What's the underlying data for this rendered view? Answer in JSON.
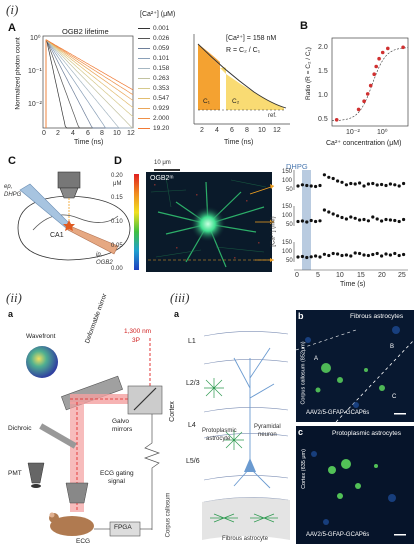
{
  "section_i": "(i)",
  "section_ii": "(ii)",
  "section_iii": "(iii)",
  "panelA": {
    "letter": "A",
    "title": "OGB2 lifetime",
    "ylabel": "Normalized photon count",
    "xlabel": "Time (ns)",
    "yticks": [
      "10⁰",
      "10⁻¹",
      "10⁻²"
    ],
    "xticks": [
      "0",
      "2",
      "4",
      "6",
      "8",
      "10",
      "12"
    ],
    "legend_title": "[Ca²⁺] (μM)",
    "legend": [
      {
        "label": "0.001",
        "color": "#333333"
      },
      {
        "label": "0.026",
        "color": "#555555"
      },
      {
        "label": "0.059",
        "color": "#6e7f9a"
      },
      {
        "label": "0.101",
        "color": "#8aa0b8"
      },
      {
        "label": "0.158",
        "color": "#a6b7c2"
      },
      {
        "label": "0.263",
        "color": "#c2c2a0"
      },
      {
        "label": "0.353",
        "color": "#d6c98c"
      },
      {
        "label": "0.547",
        "color": "#e2bd70"
      },
      {
        "label": "0.929",
        "color": "#eaa65a"
      },
      {
        "label": "2.000",
        "color": "#ee9048"
      },
      {
        "label": "19.20",
        "color": "#f07a35"
      }
    ],
    "inset_text1": "[Ca²⁺] = 158 nM",
    "inset_text2": "R = C₂ / C₁",
    "c1": "C₁",
    "c2": "C₂",
    "ref": "ref.",
    "inset_xlabel": "Time (ns)",
    "inset_xticks": [
      "2",
      "4",
      "6",
      "8",
      "10",
      "12"
    ]
  },
  "panelB": {
    "letter": "B",
    "ylabel": "Ratio (R = C₂ / C₁)",
    "xlabel": "Ca²⁺ concentration (μM)",
    "yticks": [
      "0.5",
      "1.0",
      "1.5",
      "2.0"
    ],
    "xticks": [
      "10⁻²",
      "10⁰"
    ]
  },
  "chart_data": {
    "type": "scatter",
    "x": [
      0.001,
      0.026,
      0.059,
      0.101,
      0.158,
      0.263,
      0.353,
      0.547,
      0.929,
      2.0,
      19.2
    ],
    "y": [
      0.42,
      0.62,
      0.78,
      0.92,
      1.08,
      1.3,
      1.45,
      1.6,
      1.72,
      1.8,
      1.82
    ],
    "xscale": "log",
    "ylim": [
      0.3,
      2.0
    ],
    "xlabel": "Ca²⁺ concentration (μM)",
    "ylabel": "Ratio (R = C₂ / C₁)"
  },
  "panelC": {
    "letter": "C",
    "ep": "ep,",
    "dhpg": "DHPG",
    "ca1": "CA1",
    "ip": "ip,",
    "ogb2": "OGB2"
  },
  "panelD": {
    "letter": "D",
    "scalebar": "10 μm",
    "img_label": "OGB2ᵐ",
    "cb_title": "[Ca²⁺]",
    "cb_unit": "μM",
    "cb_ticks": [
      "0.20",
      "0.15",
      "0.10",
      "0.05",
      "0.00"
    ],
    "dhpg": "DHPG",
    "ylabel": "[Ca²⁺] (nM)",
    "xlabel": "Time (s)",
    "xticks": [
      "0",
      "5",
      "10",
      "15",
      "20",
      "25"
    ],
    "trace_yticks": [
      "150",
      "100",
      "50"
    ]
  },
  "panel_ii": {
    "letter": "a",
    "wavefront": "Wavefront",
    "deformable": "Deformable mirror",
    "laser": "1,300 nm",
    "laser2": "3P",
    "galvo": "Galvo",
    "galvo2": "mirrors",
    "dichroic": "Dichroic",
    "pmt": "PMT",
    "ecg_gating": "ECG gating",
    "ecg_signal": "signal",
    "ecg": "ECG",
    "fpga": "FPGA"
  },
  "panel_iii": {
    "letter_a": "a",
    "letter_b": "b",
    "letter_c": "c",
    "L1": "L1",
    "L23": "L2/3",
    "L4": "L4",
    "L56": "L5/6",
    "cortex": "Cortex",
    "corpus": "Corpus callosum",
    "proto": "Protoplasmic",
    "proto2": "astrocyte",
    "pyramid": "Pyramidal",
    "pyramid2": "neuron",
    "fibrous": "Fibrous astrocyte",
    "b_title": "Fibrous astrocytes",
    "b_side": "Corpus callosum (852μm)",
    "b_footer": "AAV2/5-GFAP-GCAP6s",
    "b_A": "A",
    "b_B": "B",
    "b_C": "C",
    "c_title": "Protoplasmic astrocytes",
    "c_side": "Cortex (635 μm)",
    "c_footer": "AAV2/5-GFAP-GCAP6s"
  }
}
